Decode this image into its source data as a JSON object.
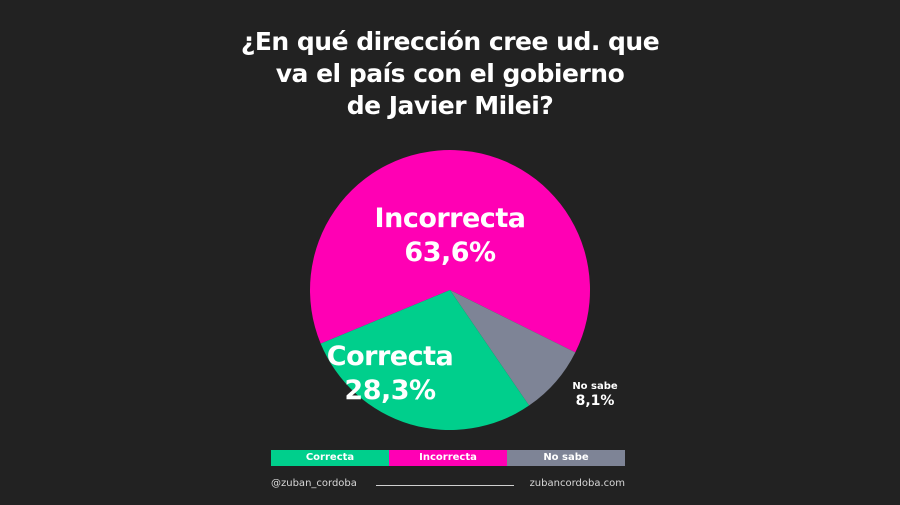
{
  "title": {
    "lines": [
      "¿En qué dirección cree ud. que",
      "va el país con el gobierno",
      "de Javier Milei?"
    ]
  },
  "labels": {
    "incorrecta": {
      "name": "Incorrecta",
      "value": "63,6%"
    },
    "correcta": {
      "name": "Correcta",
      "value": "28,3%"
    },
    "no_sabe": {
      "name": "No sabe",
      "value": "8,1%"
    }
  },
  "legend": [
    {
      "label": "Correcta",
      "color": "#00CF8C"
    },
    {
      "label": "Incorrecta",
      "color": "#FF00B4"
    },
    {
      "label": "No sabe",
      "color": "#7E8496"
    }
  ],
  "footer": {
    "handle": "@zuban_cordoba",
    "website": "zubancordoba.com"
  },
  "colors": {
    "background": "#222222",
    "correcta": "#00CF8C",
    "incorrecta": "#FF00B4",
    "no_sabe": "#7E8496"
  },
  "chart_data": {
    "type": "pie",
    "title": "¿En qué dirección cree ud. que va el país con el gobierno de Javier Milei?",
    "categories": [
      "Incorrecta",
      "Correcta",
      "No sabe"
    ],
    "values": [
      63.6,
      28.3,
      8.1
    ],
    "value_labels": [
      "63,6%",
      "28,3%",
      "8,1%"
    ],
    "colors": [
      "#FF00B4",
      "#00CF8C",
      "#7E8496"
    ],
    "legend_position": "bottom",
    "legend": [
      "Correcta",
      "Incorrecta",
      "No sabe"
    ]
  }
}
